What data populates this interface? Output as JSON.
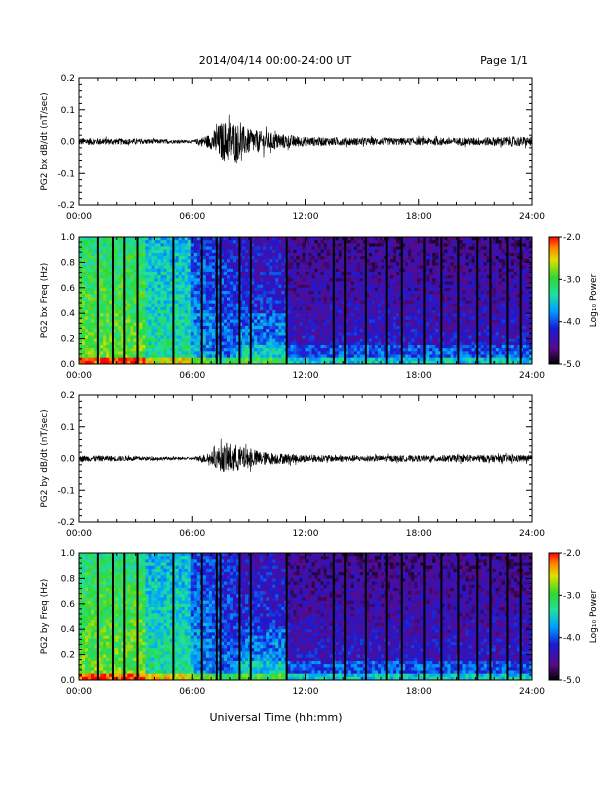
{
  "header": {
    "date_range": "2014/04/14  00:00-24:00 UT",
    "page": "Page 1/1"
  },
  "x_axis": {
    "label": "Universal Time (hh:mm)",
    "ticks": [
      "00:00",
      "06:00",
      "12:00",
      "18:00",
      "24:00"
    ]
  },
  "colorbar": {
    "label": "Log₁₀ Power",
    "ticks": [
      "-2.0",
      "-3.0",
      "-4.0",
      "-5.0"
    ]
  },
  "chart_data": [
    {
      "type": "line",
      "title": "",
      "xlabel": "",
      "ylabel": "PG2 bx dB/dt (nT/sec)",
      "xlim": [
        0,
        24
      ],
      "ylim": [
        -0.2,
        0.2
      ],
      "yticks": [
        "0.2",
        "0.1",
        "0.0",
        "-0.1",
        "-0.2"
      ],
      "envelope_hours": [
        0,
        2,
        4,
        6,
        7,
        7.5,
        8,
        9,
        10,
        12,
        15,
        18,
        21,
        23,
        24
      ],
      "envelope_amplitude": [
        0.012,
        0.01,
        0.008,
        0.004,
        0.025,
        0.06,
        0.07,
        0.04,
        0.03,
        0.015,
        0.012,
        0.012,
        0.013,
        0.016,
        0.015
      ]
    },
    {
      "type": "heatmap",
      "title": "",
      "xlabel": "",
      "ylabel": "PG2 bx Freq (Hz)",
      "xlim": [
        0,
        24
      ],
      "ylim": [
        0.0,
        1.0
      ],
      "yticks": [
        "1.0",
        "0.8",
        "0.6",
        "0.4",
        "0.2",
        "0.0"
      ],
      "zlim": [
        -5.0,
        -2.0
      ],
      "zlabel": "Log₁₀ Power",
      "data_gap_hours": [
        1.0,
        1.8,
        2.4,
        3.1,
        5.0,
        6.5,
        7.3,
        7.5,
        8.5,
        9.1,
        11.0,
        13.5,
        14.1,
        15.2,
        16.3,
        17.1,
        18.3,
        19.2,
        20.1,
        21.1,
        21.8,
        22.7,
        23.4
      ]
    },
    {
      "type": "line",
      "title": "",
      "xlabel": "",
      "ylabel": "PG2 by dB/dt (nT/sec)",
      "xlim": [
        0,
        24
      ],
      "ylim": [
        -0.2,
        0.2
      ],
      "yticks": [
        "0.2",
        "0.1",
        "0.0",
        "-0.1",
        "-0.2"
      ],
      "envelope_hours": [
        0,
        2,
        4,
        6,
        7,
        7.5,
        8,
        9,
        10,
        12,
        15,
        18,
        21,
        23,
        24
      ],
      "envelope_amplitude": [
        0.01,
        0.009,
        0.006,
        0.004,
        0.02,
        0.04,
        0.05,
        0.03,
        0.02,
        0.012,
        0.01,
        0.01,
        0.012,
        0.012,
        0.01
      ]
    },
    {
      "type": "heatmap",
      "title": "",
      "xlabel": "",
      "ylabel": "PG2 by Freq (Hz)",
      "xlim": [
        0,
        24
      ],
      "ylim": [
        0.0,
        1.0
      ],
      "yticks": [
        "1.0",
        "0.8",
        "0.6",
        "0.4",
        "0.2",
        "0.0"
      ],
      "zlim": [
        -5.0,
        -2.0
      ],
      "zlabel": "Log₁₀ Power",
      "data_gap_hours": [
        1.0,
        1.8,
        2.4,
        3.1,
        5.0,
        6.5,
        7.3,
        7.5,
        8.5,
        9.1,
        11.0,
        13.5,
        14.1,
        15.2,
        16.3,
        17.1,
        18.3,
        19.2,
        20.1,
        21.1,
        21.8,
        22.7,
        23.4
      ]
    }
  ]
}
